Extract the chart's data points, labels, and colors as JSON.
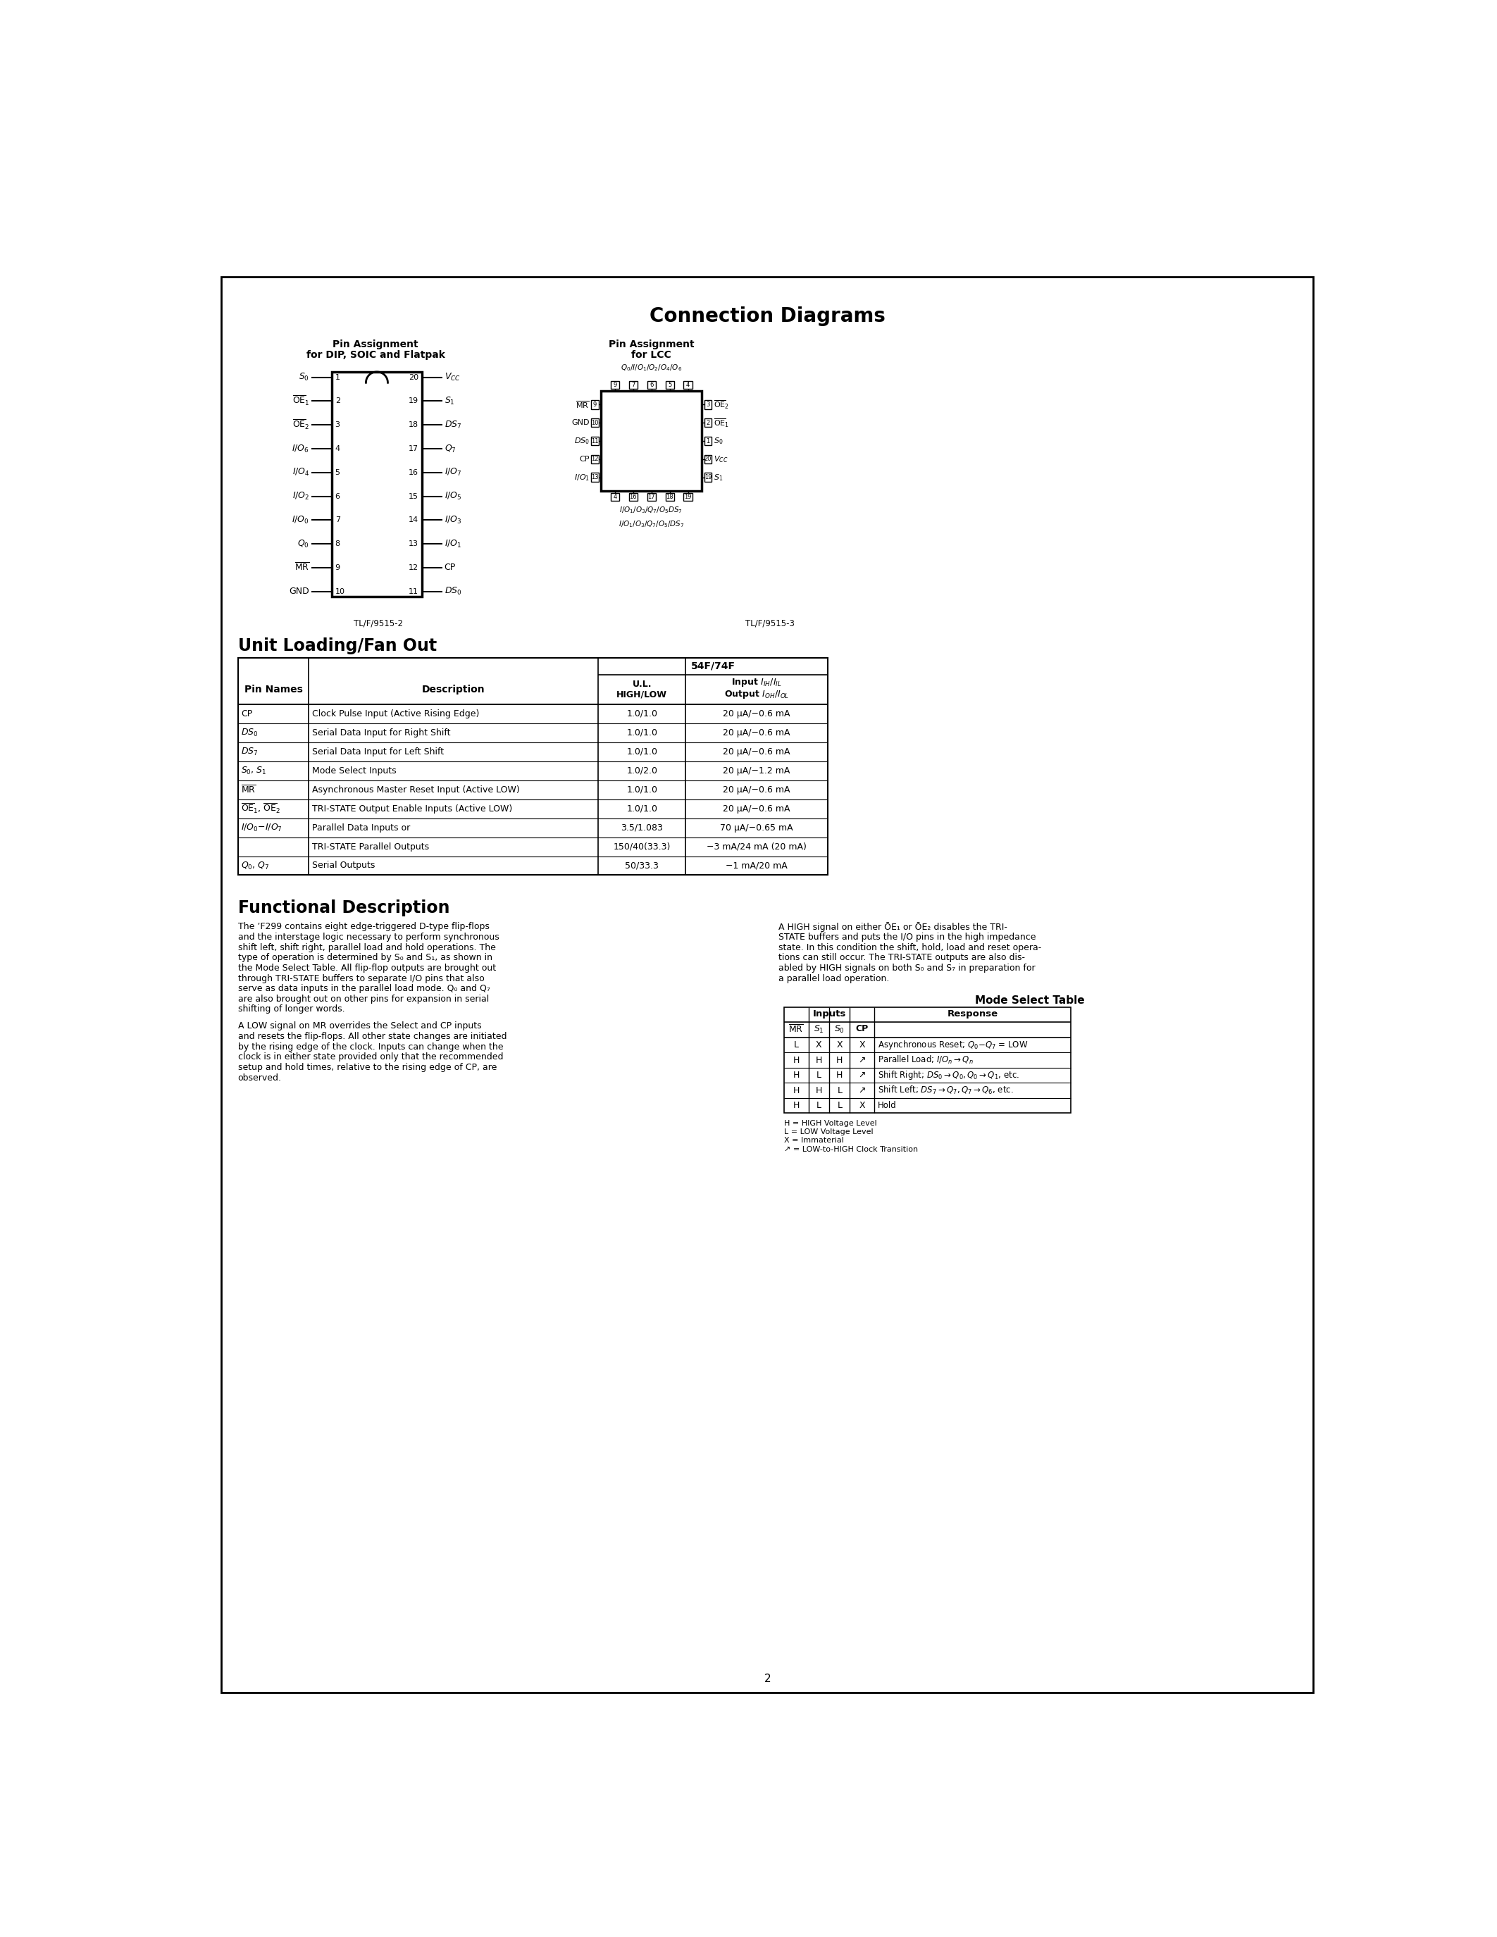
{
  "page_bg": "#ffffff",
  "title": "Connection Diagrams",
  "section1_title": "Unit Loading/Fan Out",
  "section2_title": "Functional Description",
  "page_number": "2",
  "tl_f_label1": "TL/F/9515-2",
  "tl_f_label2": "TL/F/9515-3",
  "dip_left_pins": [
    [
      "S_0",
      1
    ],
    [
      "OE_1",
      2
    ],
    [
      "OE_2",
      3
    ],
    [
      "I/O_6",
      4
    ],
    [
      "I/O_4",
      5
    ],
    [
      "I/O_2",
      6
    ],
    [
      "I/O_0",
      7
    ],
    [
      "Q_0",
      8
    ],
    [
      "MR",
      9
    ],
    [
      "GND",
      10
    ]
  ],
  "dip_right_pins": [
    [
      "V_CC",
      20
    ],
    [
      "S_1",
      19
    ],
    [
      "DS_7",
      18
    ],
    [
      "Q_7",
      17
    ],
    [
      "I/O_7",
      16
    ],
    [
      "I/O_5",
      15
    ],
    [
      "I/O_3",
      14
    ],
    [
      "I/O_1",
      13
    ],
    [
      "CP",
      12
    ],
    [
      "DS_0",
      11
    ]
  ],
  "lcc_left_pins": [
    [
      "MR",
      9
    ],
    [
      "GND",
      10
    ],
    [
      "DS_0",
      11
    ],
    [
      "CP",
      12
    ],
    [
      "I/O_1",
      13
    ]
  ],
  "lcc_right_pins": [
    [
      "OE_2",
      3
    ],
    [
      "OE_1",
      2
    ],
    [
      "S_0",
      1
    ],
    [
      "V_CC",
      20
    ],
    [
      "S_1",
      19
    ]
  ],
  "lcc_top_pins": [
    [
      "Q_0/I/O_1/O_2/O_4/O_6",
      ""
    ],
    [
      "9",
      ""
    ],
    [
      "7",
      ""
    ],
    [
      "6",
      ""
    ],
    [
      "5",
      ""
    ],
    [
      "4",
      ""
    ]
  ],
  "lcc_bot_pins": [
    [
      "I/O_1/O_3/Q_7/O_5/DS_7",
      ""
    ],
    [
      "4",
      ""
    ],
    [
      "16",
      ""
    ],
    [
      "17",
      ""
    ],
    [
      "18",
      ""
    ],
    [
      "19",
      ""
    ]
  ],
  "table_rows": [
    [
      "CP",
      "Clock Pulse Input (Active Rising Edge)",
      "1.0/1.0",
      "20 μA/−0.6 mA"
    ],
    [
      "DS_0",
      "Serial Data Input for Right Shift",
      "1.0/1.0",
      "20 μA/−0.6 mA"
    ],
    [
      "DS_7",
      "Serial Data Input for Left Shift",
      "1.0/1.0",
      "20 μA/−0.6 mA"
    ],
    [
      "S_0, S_1",
      "Mode Select Inputs",
      "1.0/2.0",
      "20 μA/−1.2 mA"
    ],
    [
      "MR",
      "Asynchronous Master Reset Input (Active LOW)",
      "1.0/1.0",
      "20 μA/−0.6 mA"
    ],
    [
      "OE_1, OE_2",
      "TRI-STATE Output Enable Inputs (Active LOW)",
      "1.0/1.0",
      "20 μA/−0.6 mA"
    ],
    [
      "I/O_0-I/O_7",
      "Parallel Data Inputs or",
      "3.5/1.083",
      "70 μA/−0.65 mA"
    ],
    [
      "",
      "TRI-STATE Parallel Outputs",
      "150/40(33.3)",
      "−3 mA/24 mA (20 mA)"
    ],
    [
      "Q_0, Q_7",
      "Serial Outputs",
      "50/33.3",
      "−1 mA/20 mA"
    ]
  ]
}
